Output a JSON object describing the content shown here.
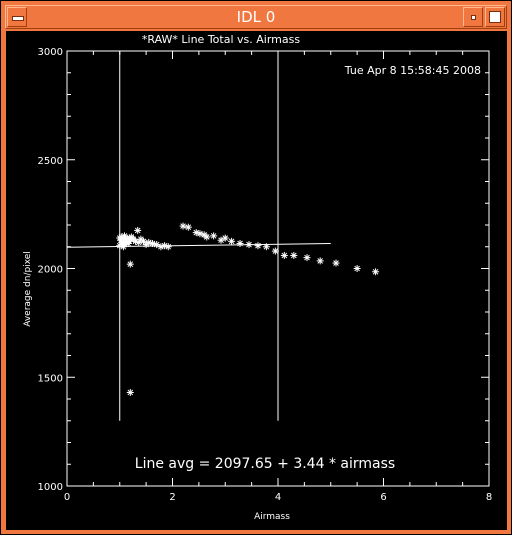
{
  "window": {
    "title": "IDL 0",
    "menu_icon": "window-menu-icon",
    "minimize_icon": "minimize-icon",
    "maximize_icon": "maximize-icon"
  },
  "plot": {
    "timestamp": "Tue Apr  8 15:58:45 2008",
    "fit_text": "Line avg = 2097.65 + 3.44 * airmass"
  },
  "chart_data": {
    "type": "scatter",
    "title": "*RAW* Line Total vs. Airmass",
    "xlabel": "Airmass",
    "ylabel": "Average dn/pixel",
    "xlim": [
      0,
      8
    ],
    "ylim": [
      1000,
      3000
    ],
    "x_ticks": [
      "0",
      "2",
      "4",
      "6",
      "8"
    ],
    "y_ticks": [
      "1000",
      "1500",
      "2000",
      "2500",
      "3000"
    ],
    "vertical_lines_x": [
      1.0,
      4.0
    ],
    "vertical_lines_y_range": [
      1300,
      3000
    ],
    "fit_line": {
      "intercept": 2097.65,
      "slope": 3.44,
      "x_range": [
        0,
        5.0
      ]
    },
    "colors": {
      "background": "#000000",
      "foreground": "#ffffff",
      "frame": "#f07840"
    },
    "series": [
      {
        "marker": "asterisk",
        "x": [
          1.0,
          1.02,
          1.04,
          1.05,
          1.06,
          1.08,
          1.1,
          1.12,
          1.14,
          1.16,
          1.18,
          1.2,
          1.0,
          1.03,
          1.07,
          1.09,
          1.11,
          1.13,
          1.17,
          1.22,
          1.26,
          1.3,
          1.36,
          1.4,
          1.45,
          1.5,
          1.55,
          1.62,
          1.7,
          1.78,
          1.85,
          1.92,
          1.34,
          1.2,
          1.2,
          2.2,
          2.3,
          2.45,
          2.52,
          2.6,
          2.65,
          2.78,
          2.92,
          3.0,
          3.12,
          3.28,
          3.45,
          3.62,
          3.78,
          3.95,
          4.12,
          4.3,
          4.55,
          4.8,
          5.1,
          5.5,
          5.85
        ],
        "y": [
          2140,
          2130,
          2120,
          2135,
          2125,
          2110,
          2130,
          2120,
          2140,
          2115,
          2125,
          2135,
          2105,
          2145,
          2100,
          2150,
          2140,
          2120,
          2130,
          2145,
          2135,
          2125,
          2120,
          2135,
          2125,
          2110,
          2120,
          2115,
          2110,
          2100,
          2105,
          2100,
          2175,
          2020,
          1430,
          2195,
          2190,
          2165,
          2160,
          2155,
          2145,
          2150,
          2130,
          2140,
          2125,
          2115,
          2110,
          2105,
          2100,
          2080,
          2060,
          2060,
          2050,
          2035,
          2025,
          2000,
          1985
        ]
      }
    ]
  }
}
